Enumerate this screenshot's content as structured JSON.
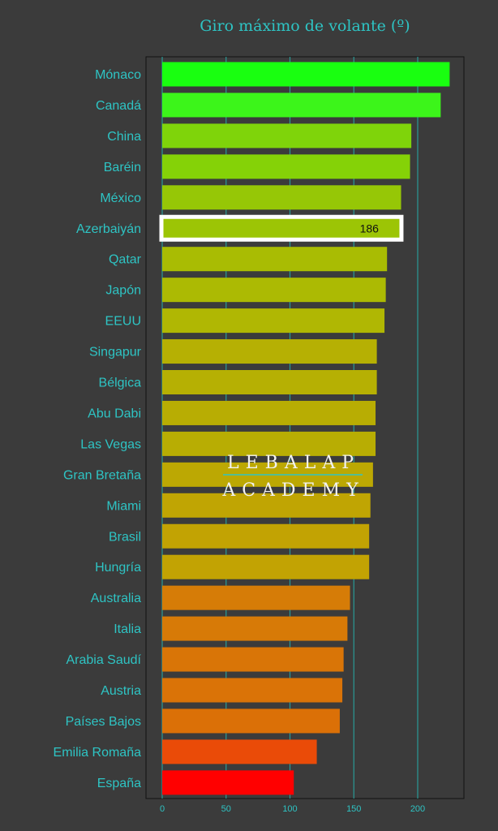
{
  "chart_data": {
    "type": "bar",
    "orientation": "horizontal",
    "title": "Giro máximo de volante (º)",
    "xlabel": "",
    "ylabel": "",
    "xlim": [
      0,
      235
    ],
    "x_ticks": [
      0,
      50,
      100,
      150,
      200
    ],
    "grid": true,
    "categories": [
      "Mónaco",
      "Canadá",
      "China",
      "Baréin",
      "México",
      "Azerbaiyán",
      "Qatar",
      "Japón",
      "EEUU",
      "Singapur",
      "Bélgica",
      "Abu Dabi",
      "Las Vegas",
      "Gran Bretaña",
      "Miami",
      "Brasil",
      "Hungría",
      "Australia",
      "Italia",
      "Arabia Saudí",
      "Austria",
      "Países Bajos",
      "Emilia Romaña",
      "España"
    ],
    "values": [
      225,
      218,
      195,
      194,
      187,
      186,
      176,
      175,
      174,
      168,
      168,
      167,
      167,
      165,
      163,
      162,
      162,
      147,
      145,
      142,
      141,
      139,
      121,
      103
    ],
    "colors": [
      "#19ff10",
      "#3cf51a",
      "#7fd40a",
      "#85d207",
      "#96c706",
      "#9cc505",
      "#a9bc03",
      "#acba03",
      "#b0b703",
      "#b6b003",
      "#b6b003",
      "#b8ad03",
      "#b8ad03",
      "#bca803",
      "#c0a503",
      "#c2a303",
      "#c2a303",
      "#d67c07",
      "#d77a07",
      "#d97507",
      "#da7307",
      "#db7007",
      "#ea4b08",
      "#ff0000"
    ],
    "highlight": {
      "category": "Azerbaiyán",
      "label": "186"
    }
  },
  "watermark": {
    "line1": "LEBALAP",
    "line2": "ACADEMY"
  },
  "style": {
    "background": "#3b3b3b",
    "text_color": "#2ec4c4",
    "grid_color": "#2a9a96",
    "highlight_border": "#ffffff"
  }
}
